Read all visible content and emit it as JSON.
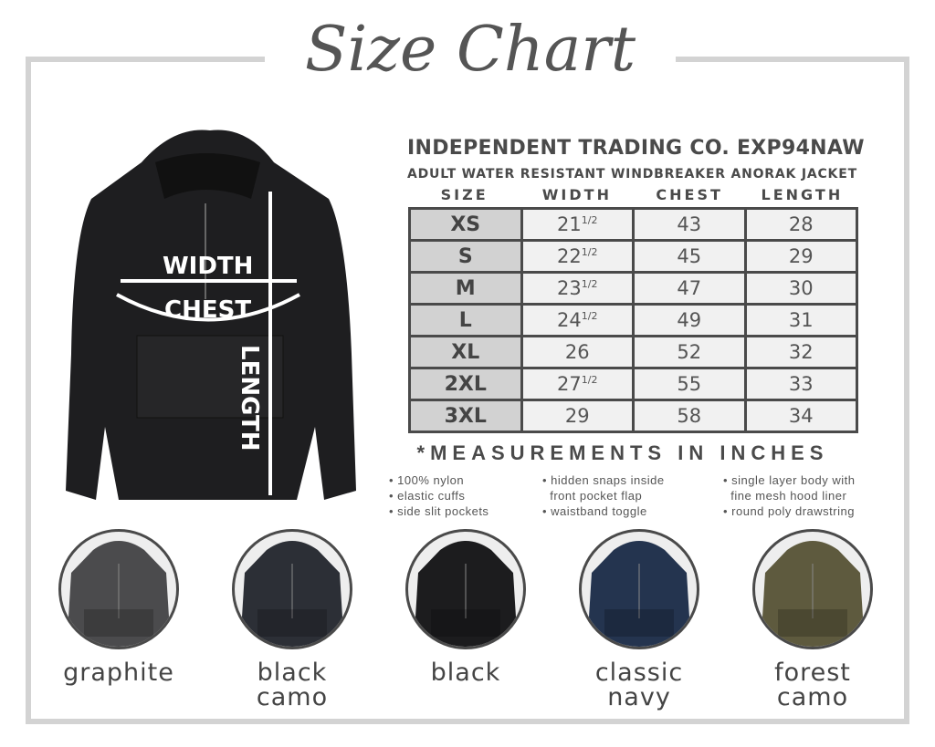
{
  "title": "Size Chart",
  "brand": "INDEPENDENT TRADING CO. EXP94NAW",
  "subtitle": "ADULT WATER RESISTANT WINDBREAKER ANORAK JACKET",
  "headers": [
    "SIZE",
    "WIDTH",
    "CHEST",
    "LENGTH"
  ],
  "rows": [
    {
      "size": "XS",
      "width": "21",
      "frac": "1/2",
      "chest": "43",
      "length": "28"
    },
    {
      "size": "S",
      "width": "22",
      "frac": "1/2",
      "chest": "45",
      "length": "29"
    },
    {
      "size": "M",
      "width": "23",
      "frac": "1/2",
      "chest": "47",
      "length": "30"
    },
    {
      "size": "L",
      "width": "24",
      "frac": "1/2",
      "chest": "49",
      "length": "31"
    },
    {
      "size": "XL",
      "width": "26",
      "frac": "",
      "chest": "52",
      "length": "32"
    },
    {
      "size": "2XL",
      "width": "27",
      "frac": "1/2",
      "chest": "55",
      "length": "33"
    },
    {
      "size": "3XL",
      "width": "29",
      "frac": "",
      "chest": "58",
      "length": "34"
    }
  ],
  "note": "*MEASUREMENTS IN INCHES",
  "features": [
    [
      "• 100% nylon",
      "• elastic cuffs",
      "• side slit pockets"
    ],
    [
      "• hidden snaps inside",
      "  front pocket flap",
      "• waistband toggle"
    ],
    [
      "• single layer body with",
      "  fine mesh hood liner",
      "• round poly drawstring"
    ]
  ],
  "diagram": {
    "width": "WIDTH",
    "chest": "CHEST",
    "length": "LENGTH"
  },
  "colors": [
    {
      "name1": "graphite",
      "name2": "",
      "hex": "#4b4b4d"
    },
    {
      "name1": "black",
      "name2": "camo",
      "hex": "#2c2f36"
    },
    {
      "name1": "black",
      "name2": "",
      "hex": "#1c1c1e"
    },
    {
      "name1": "classic",
      "name2": "navy",
      "hex": "#24344f"
    },
    {
      "name1": "forest",
      "name2": "camo",
      "hex": "#5e5a3e"
    }
  ]
}
